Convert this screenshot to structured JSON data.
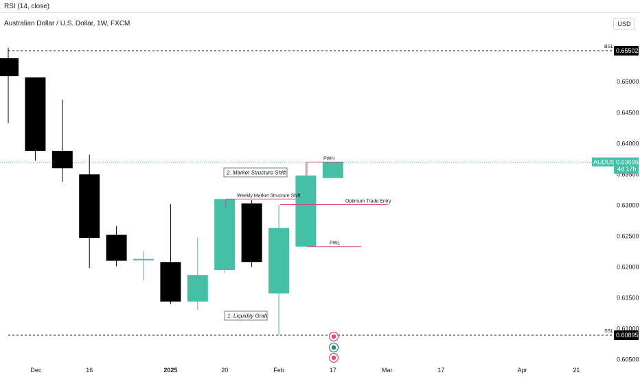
{
  "header": {
    "indicator": "RSI (14, close)",
    "title": "Australian Dollar / U.S. Dollar, 1W, FXCM",
    "currency": "USD"
  },
  "colors": {
    "up": "#44c0a6",
    "down": "#000000",
    "annotation": "#e0457b",
    "price_line": "#44c0a6"
  },
  "chart_data": {
    "type": "candlestick",
    "title": "Australian Dollar / U.S. Dollar, 1W, FXCM",
    "ylim": [
      0.6035,
      0.6575
    ],
    "y_ticks": [
      0.605,
      0.61,
      0.615,
      0.62,
      0.625,
      0.63,
      0.635,
      0.64,
      0.645,
      0.65
    ],
    "x_ticks": [
      {
        "i": 1.0,
        "label": "Dec"
      },
      {
        "i": 3.0,
        "label": "16"
      },
      {
        "i": 6.0,
        "label": "2025"
      },
      {
        "i": 8.0,
        "label": "20"
      },
      {
        "i": 10.0,
        "label": "Feb"
      },
      {
        "i": 12.0,
        "label": "17"
      },
      {
        "i": 14.0,
        "label": "Mar"
      },
      {
        "i": 16.0,
        "label": "17"
      },
      {
        "i": 19.0,
        "label": "Apr"
      },
      {
        "i": 21.0,
        "label": "21"
      }
    ],
    "candles": [
      {
        "i": 0,
        "open": 0.6538,
        "high": 0.6555,
        "low": 0.6433,
        "close": 0.6509
      },
      {
        "i": 1,
        "open": 0.6507,
        "high": 0.6507,
        "low": 0.6372,
        "close": 0.6388
      },
      {
        "i": 2,
        "open": 0.6388,
        "high": 0.6471,
        "low": 0.6338,
        "close": 0.636
      },
      {
        "i": 3,
        "open": 0.635,
        "high": 0.6382,
        "low": 0.6198,
        "close": 0.6247
      },
      {
        "i": 4,
        "open": 0.6252,
        "high": 0.6266,
        "low": 0.6201,
        "close": 0.621
      },
      {
        "i": 5,
        "open": 0.6211,
        "high": 0.6226,
        "low": 0.6178,
        "close": 0.6213
      },
      {
        "i": 6,
        "open": 0.6208,
        "high": 0.6302,
        "low": 0.614,
        "close": 0.6144
      },
      {
        "i": 7,
        "open": 0.6144,
        "high": 0.6248,
        "low": 0.613,
        "close": 0.6187
      },
      {
        "i": 8,
        "open": 0.6195,
        "high": 0.631,
        "low": 0.619,
        "close": 0.631
      },
      {
        "i": 9,
        "open": 0.6303,
        "high": 0.6308,
        "low": 0.62,
        "close": 0.6208
      },
      {
        "i": 10,
        "open": 0.6157,
        "high": 0.6301,
        "low": 0.6089,
        "close": 0.6263
      },
      {
        "i": 11,
        "open": 0.6233,
        "high": 0.6371,
        "low": 0.6233,
        "close": 0.6348
      },
      {
        "i": 12,
        "open": 0.6344,
        "high": 0.637,
        "low": 0.6344,
        "close": 0.637
      }
    ],
    "levels": [
      {
        "label": "BSL",
        "value": 0.65502,
        "badge": "0.65502"
      },
      {
        "label": "SSL",
        "value": 0.60895,
        "badge": "0.60895"
      }
    ],
    "current": {
      "symbol": "AUDUSD",
      "price": "0.63696",
      "value": 0.63696,
      "countdown": "4d 17h"
    },
    "annotations": {
      "pwh": "PWH",
      "pwl": "PWL",
      "weekly_mss": "Weekly Market Structure Shift",
      "ote": "Optimum Trade Entry",
      "mss_box": "2. Market Structure Shift",
      "grab_box": "1. Liquidity Grab"
    }
  }
}
